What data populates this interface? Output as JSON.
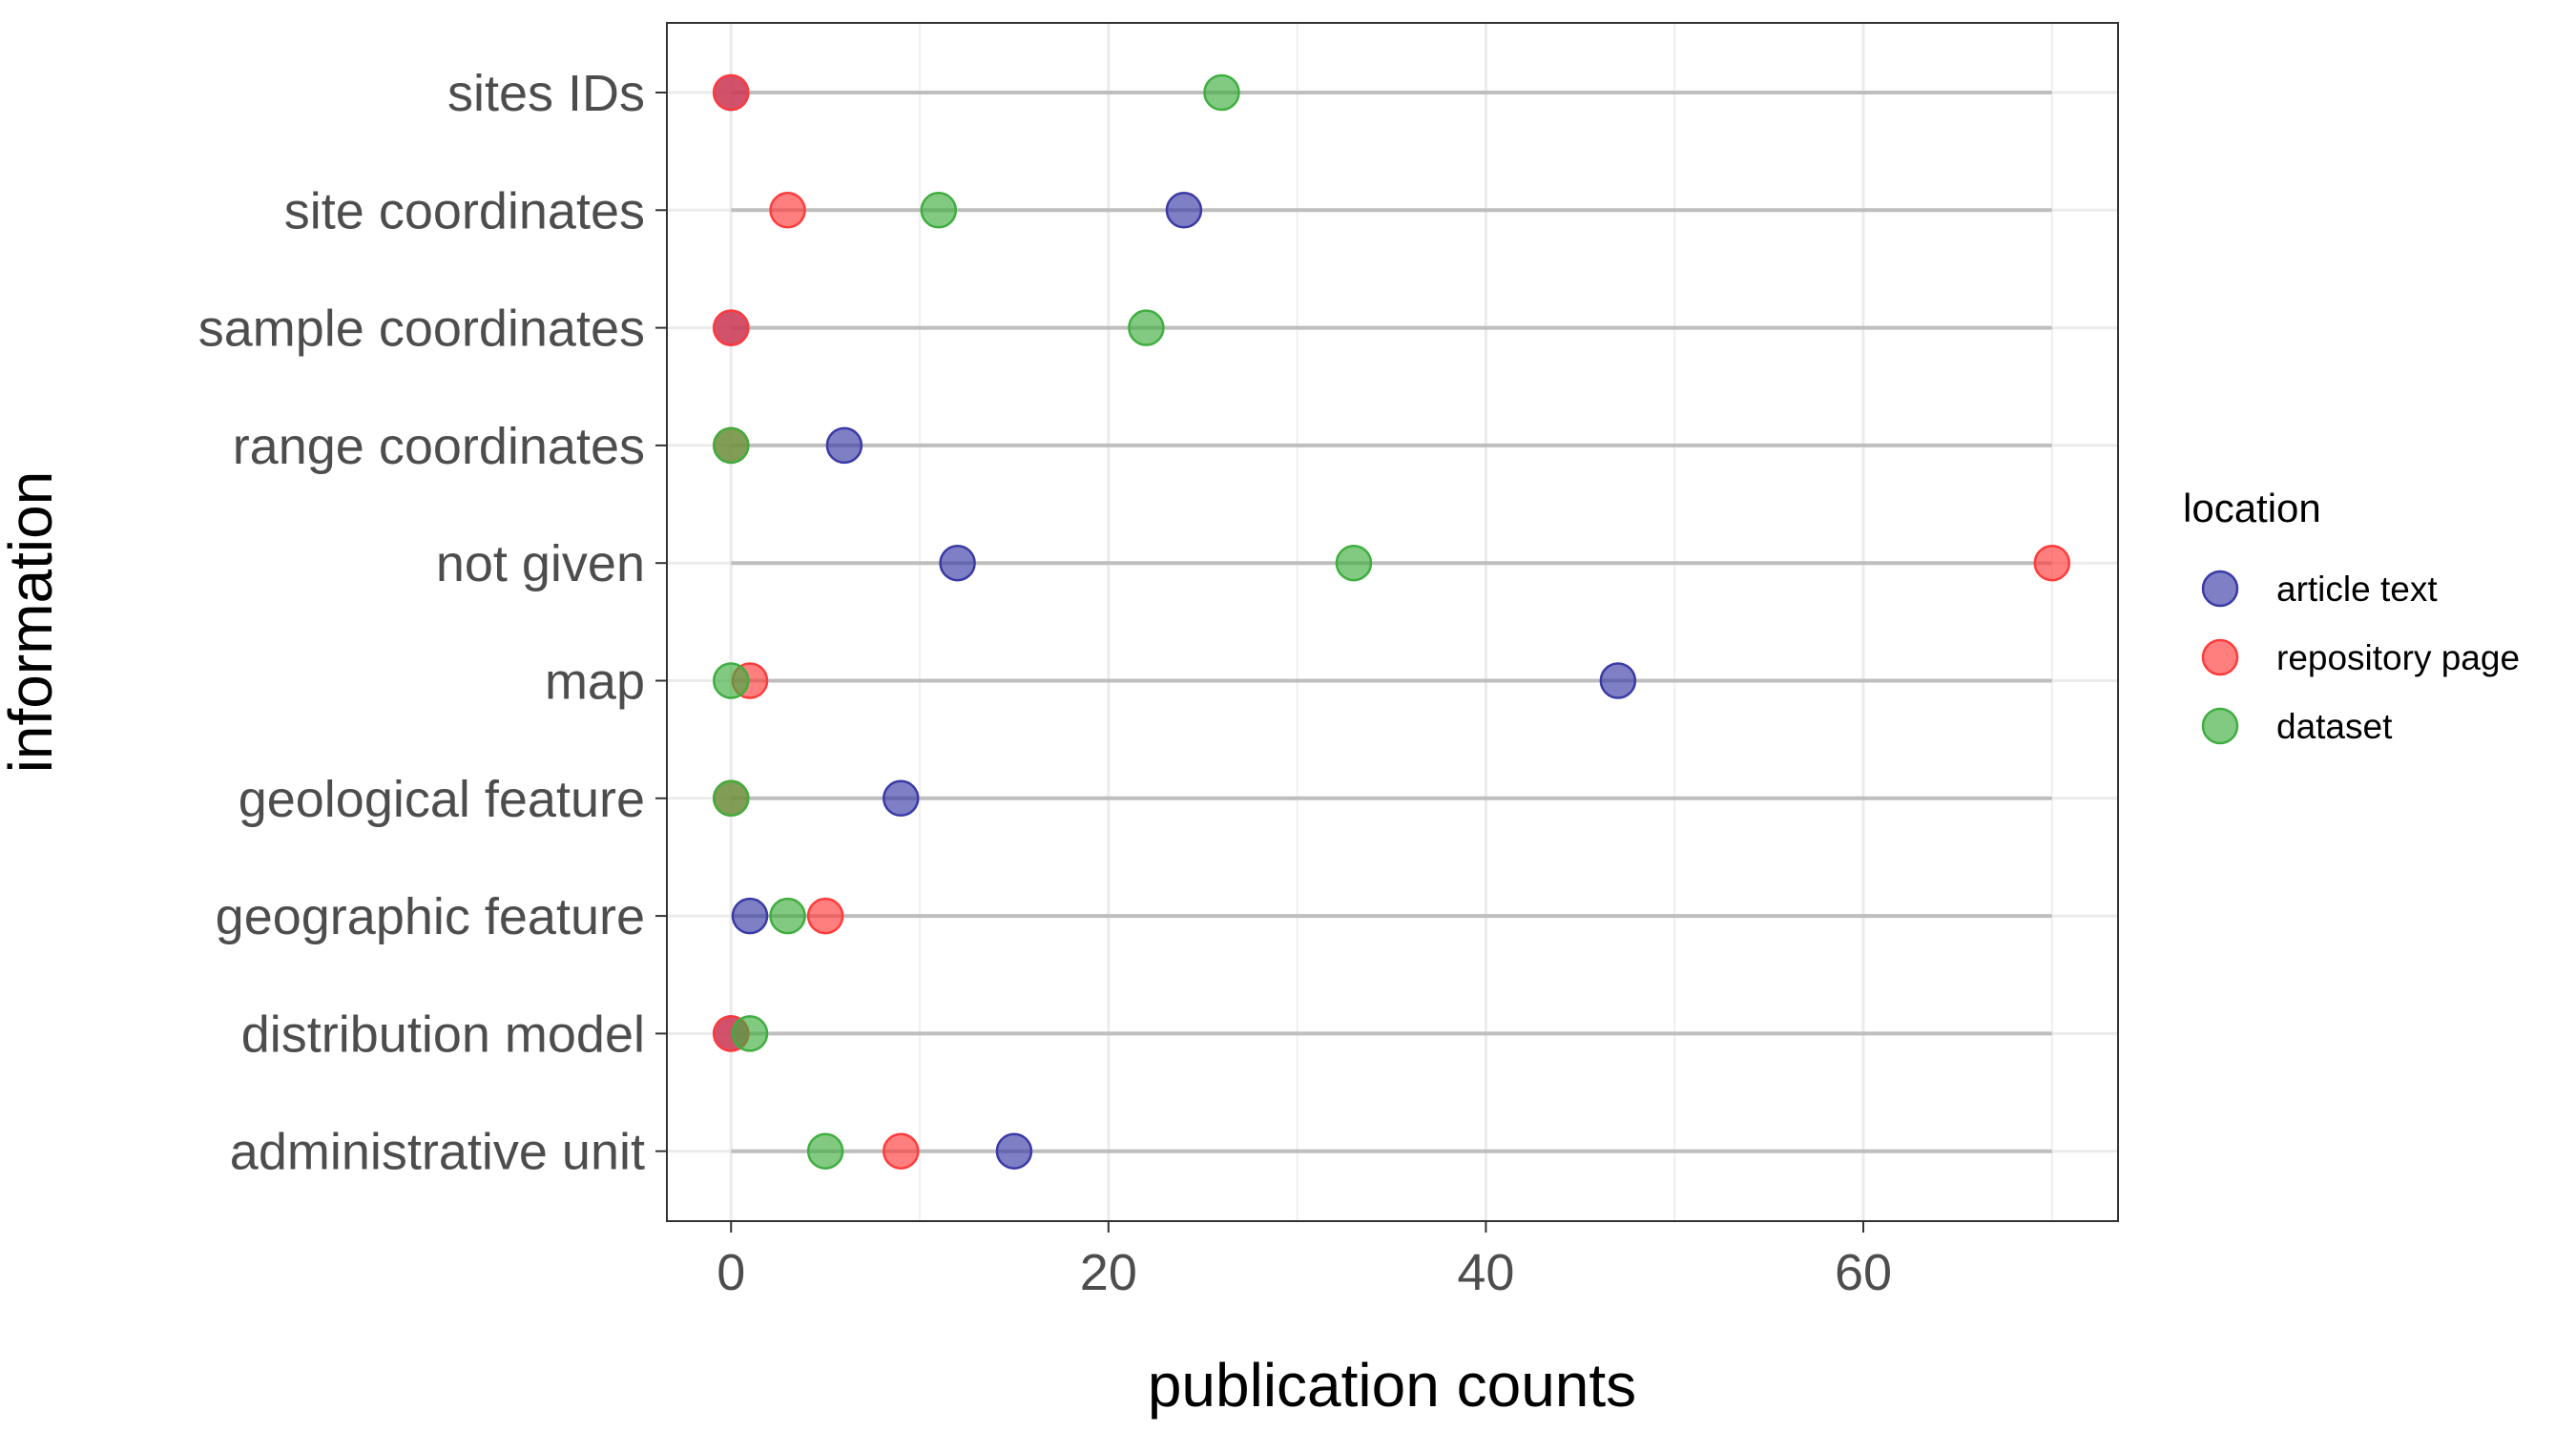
{
  "chart_data": {
    "type": "scatter",
    "xlabel": "publication counts",
    "ylabel": "information",
    "xlim": [
      -3.4,
      73.5
    ],
    "xticks": [
      0,
      20,
      40,
      60
    ],
    "minor_xticks": [
      10,
      30,
      50,
      70
    ],
    "grid": true,
    "segment_range": [
      0,
      70
    ],
    "categories": [
      "sites IDs",
      "site coordinates",
      "sample coordinates",
      "range coordinates",
      "not given",
      "map",
      "geological feature",
      "geographic feature",
      "distribution model",
      "administrative unit"
    ],
    "legend": {
      "title": "location",
      "position": "right"
    },
    "series": [
      {
        "name": "article text",
        "color": "#3a3aa6",
        "values": [
          0,
          24,
          0,
          6,
          12,
          47,
          9,
          1,
          0,
          15
        ]
      },
      {
        "name": "repository page",
        "color": "#ff3b3b",
        "values": [
          0,
          3,
          0,
          0,
          70,
          1,
          0,
          5,
          0,
          9
        ]
      },
      {
        "name": "dataset",
        "color": "#3fae3f",
        "values": [
          26,
          11,
          22,
          0,
          33,
          0,
          0,
          3,
          1,
          5
        ]
      }
    ]
  }
}
